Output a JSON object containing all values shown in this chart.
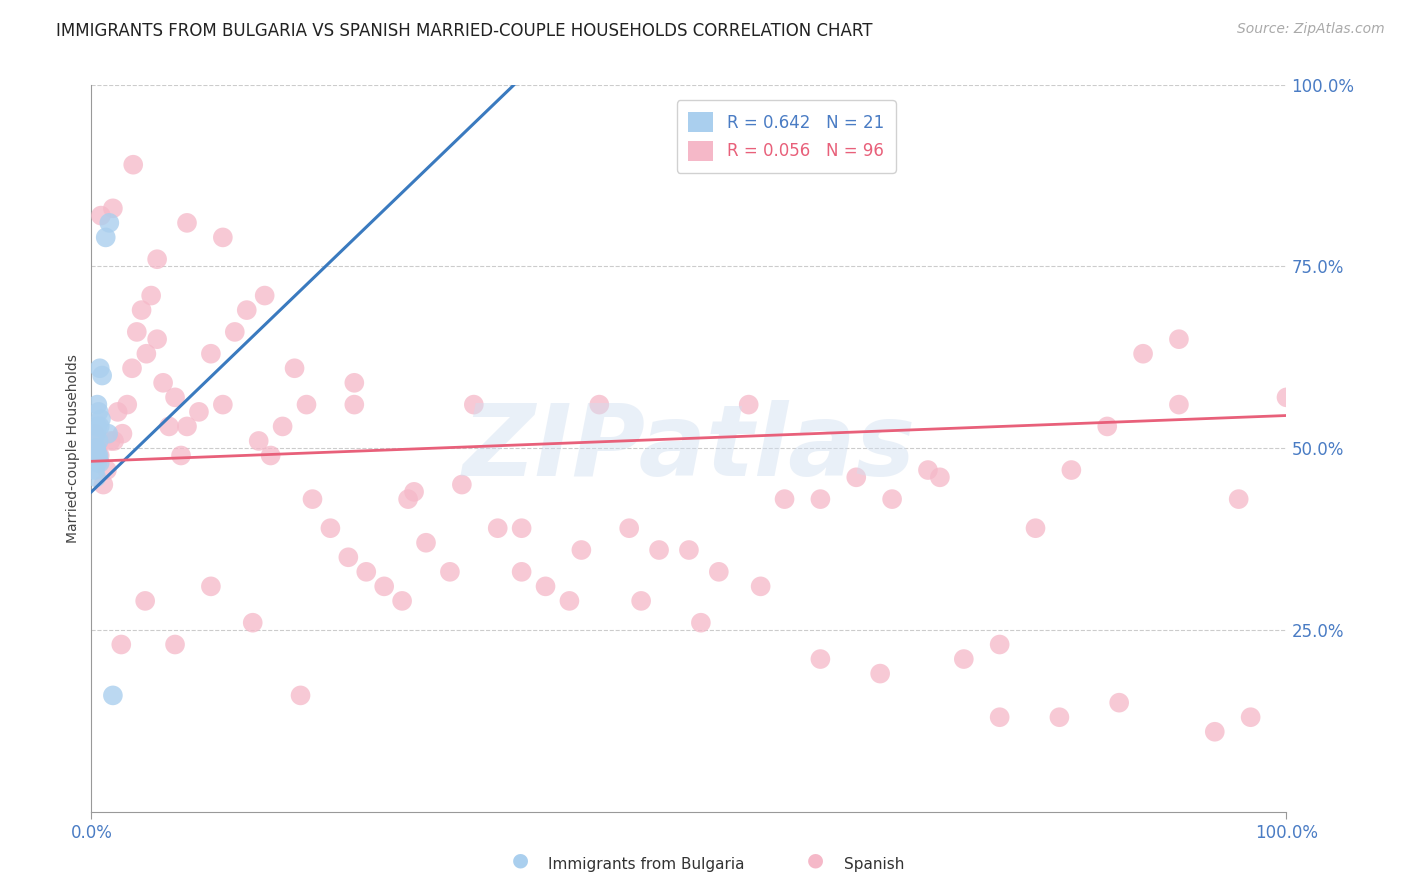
{
  "title": "IMMIGRANTS FROM BULGARIA VS SPANISH MARRIED-COUPLE HOUSEHOLDS CORRELATION CHART",
  "source": "Source: ZipAtlas.com",
  "ylabel": "Married-couple Households",
  "ytick_labels": [
    "100.0%",
    "75.0%",
    "50.0%",
    "25.0%"
  ],
  "ytick_values": [
    1.0,
    0.75,
    0.5,
    0.25
  ],
  "xlim": [
    0.0,
    1.0
  ],
  "ylim": [
    0.0,
    1.0
  ],
  "legend_r_bulgaria": "R = 0.642",
  "legend_n_bulgaria": "N = 21",
  "legend_r_spanish": "R = 0.056",
  "legend_n_spanish": "N = 96",
  "color_bulgaria": "#aacfee",
  "color_spanish": "#f5b8c8",
  "color_line_bulgaria": "#3a7abf",
  "color_line_spanish": "#e8607a",
  "bulgaria_scatter_x": [
    0.004,
    0.008,
    0.005,
    0.006,
    0.004,
    0.005,
    0.003,
    0.006,
    0.004,
    0.007,
    0.009,
    0.005,
    0.006,
    0.005,
    0.012,
    0.015,
    0.014,
    0.018,
    0.007,
    0.004,
    0.007
  ],
  "bulgaria_scatter_y": [
    0.52,
    0.54,
    0.56,
    0.51,
    0.5,
    0.53,
    0.47,
    0.55,
    0.5,
    0.61,
    0.6,
    0.48,
    0.49,
    0.49,
    0.79,
    0.81,
    0.52,
    0.16,
    0.53,
    0.46,
    0.48
  ],
  "spanish_scatter_x": [
    0.003,
    0.005,
    0.007,
    0.01,
    0.013,
    0.016,
    0.019,
    0.022,
    0.026,
    0.03,
    0.034,
    0.038,
    0.042,
    0.046,
    0.05,
    0.055,
    0.06,
    0.065,
    0.07,
    0.075,
    0.08,
    0.09,
    0.1,
    0.11,
    0.12,
    0.13,
    0.14,
    0.15,
    0.16,
    0.17,
    0.185,
    0.2,
    0.215,
    0.23,
    0.245,
    0.26,
    0.28,
    0.3,
    0.32,
    0.34,
    0.36,
    0.38,
    0.4,
    0.425,
    0.45,
    0.475,
    0.5,
    0.525,
    0.55,
    0.58,
    0.61,
    0.64,
    0.67,
    0.7,
    0.73,
    0.76,
    0.79,
    0.82,
    0.85,
    0.88,
    0.91,
    0.94,
    0.97,
    1.0,
    0.008,
    0.018,
    0.035,
    0.055,
    0.08,
    0.11,
    0.145,
    0.18,
    0.22,
    0.265,
    0.31,
    0.36,
    0.41,
    0.46,
    0.51,
    0.56,
    0.61,
    0.66,
    0.71,
    0.76,
    0.81,
    0.86,
    0.91,
    0.96,
    0.025,
    0.045,
    0.07,
    0.1,
    0.135,
    0.175,
    0.22,
    0.27
  ],
  "spanish_scatter_y": [
    0.52,
    0.5,
    0.49,
    0.45,
    0.47,
    0.51,
    0.51,
    0.55,
    0.52,
    0.56,
    0.61,
    0.66,
    0.69,
    0.63,
    0.71,
    0.65,
    0.59,
    0.53,
    0.57,
    0.49,
    0.53,
    0.55,
    0.63,
    0.56,
    0.66,
    0.69,
    0.51,
    0.49,
    0.53,
    0.61,
    0.43,
    0.39,
    0.35,
    0.33,
    0.31,
    0.29,
    0.37,
    0.33,
    0.56,
    0.39,
    0.33,
    0.31,
    0.29,
    0.56,
    0.39,
    0.36,
    0.36,
    0.33,
    0.56,
    0.43,
    0.43,
    0.46,
    0.43,
    0.47,
    0.21,
    0.23,
    0.39,
    0.47,
    0.53,
    0.63,
    0.65,
    0.11,
    0.13,
    0.57,
    0.82,
    0.83,
    0.89,
    0.76,
    0.81,
    0.79,
    0.71,
    0.56,
    0.59,
    0.43,
    0.45,
    0.39,
    0.36,
    0.29,
    0.26,
    0.31,
    0.21,
    0.19,
    0.46,
    0.13,
    0.13,
    0.15,
    0.56,
    0.43,
    0.23,
    0.29,
    0.23,
    0.31,
    0.26,
    0.16,
    0.56,
    0.44
  ],
  "background_color": "#ffffff",
  "grid_color": "#cccccc",
  "title_color": "#222222",
  "axis_label_color": "#4a7cc4",
  "watermark_text": "ZIPatlas",
  "watermark_color": "#d0dff0",
  "watermark_alpha": 0.45,
  "legend_fontsize": 12,
  "title_fontsize": 12,
  "ylabel_fontsize": 10,
  "source_fontsize": 10,
  "blue_line_x0": 0.0,
  "blue_line_y0": 0.44,
  "blue_line_x1": 0.36,
  "blue_line_y1": 1.01,
  "pink_line_x0": 0.0,
  "pink_line_y0": 0.482,
  "pink_line_x1": 1.0,
  "pink_line_y1": 0.545
}
